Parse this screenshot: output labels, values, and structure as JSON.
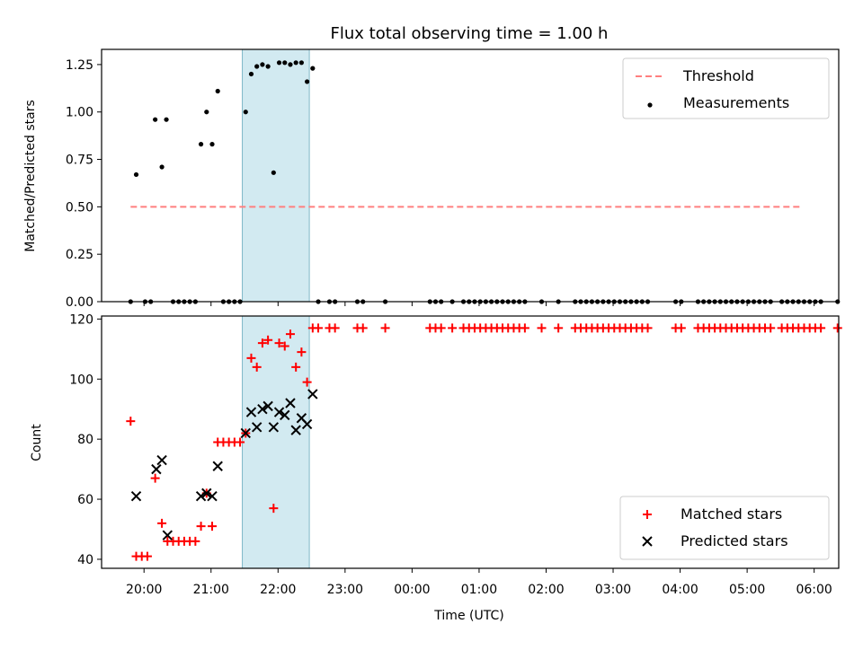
{
  "colors": {
    "threshold": "#ff7f7f",
    "shade": "#add8e6",
    "matched": "#ff0000",
    "predicted": "#000000",
    "measurement": "#000000"
  },
  "x_tick_labels": [
    "20:00",
    "21:00",
    "22:00",
    "23:00",
    "00:00",
    "01:00",
    "02:00",
    "03:00",
    "04:00",
    "05:00",
    "06:00"
  ],
  "chart_data": [
    {
      "type": "scatter",
      "title": "Flux total observing time = 1.00 h",
      "xlabel": "",
      "ylabel": "Matched/Predicted stars",
      "ylim": [
        0,
        1.33
      ],
      "y_ticks": [
        "0.00",
        "0.25",
        "0.50",
        "0.75",
        "1.00",
        "1.25"
      ],
      "xlim": [
        "19:22",
        "06:22"
      ],
      "shaded_interval": [
        "21:28",
        "22:28"
      ],
      "legend": {
        "placement": "top-right",
        "entries": [
          "Threshold",
          "Measurements"
        ]
      },
      "threshold": {
        "name": "Threshold",
        "value": 0.5,
        "x_range": [
          "19:48",
          "05:48"
        ]
      },
      "series": [
        {
          "name": "Measurements",
          "points": [
            [
              "19:48",
              0.0
            ],
            [
              "19:53",
              0.67
            ],
            [
              "20:01",
              0.0
            ],
            [
              "20:06",
              0.0
            ],
            [
              "20:10",
              0.96
            ],
            [
              "20:16",
              0.71
            ],
            [
              "20:20",
              0.96
            ],
            [
              "20:26",
              0.0
            ],
            [
              "20:31",
              0.0
            ],
            [
              "20:36",
              0.0
            ],
            [
              "20:41",
              0.0
            ],
            [
              "20:46",
              0.0
            ],
            [
              "20:51",
              0.83
            ],
            [
              "20:56",
              1.0
            ],
            [
              "21:01",
              0.83
            ],
            [
              "21:06",
              1.11
            ],
            [
              "21:11",
              0.0
            ],
            [
              "21:16",
              0.0
            ],
            [
              "21:21",
              0.0
            ],
            [
              "21:26",
              0.0
            ],
            [
              "21:31",
              1.0
            ],
            [
              "21:36",
              1.2
            ],
            [
              "21:41",
              1.24
            ],
            [
              "21:46",
              1.25
            ],
            [
              "21:51",
              1.24
            ],
            [
              "21:56",
              0.68
            ],
            [
              "22:01",
              1.26
            ],
            [
              "22:06",
              1.26
            ],
            [
              "22:11",
              1.25
            ],
            [
              "22:16",
              1.26
            ],
            [
              "22:21",
              1.26
            ],
            [
              "22:26",
              1.16
            ],
            [
              "22:31",
              1.23
            ],
            [
              "22:36",
              0.0
            ],
            [
              "22:46",
              0.0
            ],
            [
              "22:51",
              0.0
            ],
            [
              "23:11",
              0.0
            ],
            [
              "23:16",
              0.0
            ],
            [
              "23:36",
              0.0
            ],
            [
              "00:16",
              0.0
            ],
            [
              "00:21",
              0.0
            ],
            [
              "00:26",
              0.0
            ],
            [
              "00:36",
              0.0
            ],
            [
              "00:46",
              0.0
            ],
            [
              "00:51",
              0.0
            ],
            [
              "00:56",
              0.0
            ],
            [
              "01:01",
              0.0
            ],
            [
              "01:06",
              0.0
            ],
            [
              "01:11",
              0.0
            ],
            [
              "01:16",
              0.0
            ],
            [
              "01:21",
              0.0
            ],
            [
              "01:26",
              0.0
            ],
            [
              "01:31",
              0.0
            ],
            [
              "01:36",
              0.0
            ],
            [
              "01:41",
              0.0
            ],
            [
              "01:56",
              0.0
            ],
            [
              "02:11",
              0.0
            ],
            [
              "02:26",
              0.0
            ],
            [
              "02:31",
              0.0
            ],
            [
              "02:36",
              0.0
            ],
            [
              "02:41",
              0.0
            ],
            [
              "02:46",
              0.0
            ],
            [
              "02:51",
              0.0
            ],
            [
              "02:56",
              0.0
            ],
            [
              "03:01",
              0.0
            ],
            [
              "03:06",
              0.0
            ],
            [
              "03:11",
              0.0
            ],
            [
              "03:16",
              0.0
            ],
            [
              "03:21",
              0.0
            ],
            [
              "03:26",
              0.0
            ],
            [
              "03:31",
              0.0
            ],
            [
              "03:56",
              0.0
            ],
            [
              "04:01",
              0.0
            ],
            [
              "04:16",
              0.0
            ],
            [
              "04:21",
              0.0
            ],
            [
              "04:26",
              0.0
            ],
            [
              "04:31",
              0.0
            ],
            [
              "04:36",
              0.0
            ],
            [
              "04:41",
              0.0
            ],
            [
              "04:46",
              0.0
            ],
            [
              "04:51",
              0.0
            ],
            [
              "04:56",
              0.0
            ],
            [
              "05:01",
              0.0
            ],
            [
              "05:06",
              0.0
            ],
            [
              "05:11",
              0.0
            ],
            [
              "05:16",
              0.0
            ],
            [
              "05:21",
              0.0
            ],
            [
              "05:31",
              0.0
            ],
            [
              "05:36",
              0.0
            ],
            [
              "05:41",
              0.0
            ],
            [
              "05:46",
              0.0
            ],
            [
              "05:51",
              0.0
            ],
            [
              "05:56",
              0.0
            ],
            [
              "06:01",
              0.0
            ],
            [
              "06:06",
              0.0
            ],
            [
              "06:21",
              0.0
            ]
          ]
        }
      ]
    },
    {
      "type": "scatter",
      "title": "",
      "xlabel": "Time (UTC)",
      "ylabel": "Count",
      "ylim": [
        37,
        121
      ],
      "y_ticks": [
        "40",
        "60",
        "80",
        "100",
        "120"
      ],
      "xlim": [
        "19:22",
        "06:22"
      ],
      "shaded_interval": [
        "21:28",
        "22:28"
      ],
      "legend": {
        "placement": "bottom-right",
        "entries": [
          "Matched stars",
          "Predicted stars"
        ]
      },
      "series": [
        {
          "name": "Matched stars",
          "marker": "+",
          "points": [
            [
              "19:48",
              86
            ],
            [
              "19:53",
              41
            ],
            [
              "19:58",
              41
            ],
            [
              "20:03",
              41
            ],
            [
              "20:10",
              67
            ],
            [
              "20:16",
              52
            ],
            [
              "20:21",
              46
            ],
            [
              "20:26",
              46
            ],
            [
              "20:31",
              46
            ],
            [
              "20:36",
              46
            ],
            [
              "20:41",
              46
            ],
            [
              "20:46",
              46
            ],
            [
              "20:51",
              51
            ],
            [
              "20:56",
              62
            ],
            [
              "21:01",
              51
            ],
            [
              "21:06",
              79
            ],
            [
              "21:11",
              79
            ],
            [
              "21:16",
              79
            ],
            [
              "21:21",
              79
            ],
            [
              "21:26",
              79
            ],
            [
              "21:31",
              82
            ],
            [
              "21:36",
              107
            ],
            [
              "21:41",
              104
            ],
            [
              "21:46",
              112
            ],
            [
              "21:51",
              113
            ],
            [
              "21:56",
              57
            ],
            [
              "22:01",
              112
            ],
            [
              "22:06",
              111
            ],
            [
              "22:11",
              115
            ],
            [
              "22:16",
              104
            ],
            [
              "22:21",
              109
            ],
            [
              "22:26",
              99
            ],
            [
              "22:31",
              117
            ],
            [
              "22:36",
              117
            ],
            [
              "22:46",
              117
            ],
            [
              "22:51",
              117
            ],
            [
              "23:11",
              117
            ],
            [
              "23:16",
              117
            ],
            [
              "23:36",
              117
            ],
            [
              "00:16",
              117
            ],
            [
              "00:21",
              117
            ],
            [
              "00:26",
              117
            ],
            [
              "00:36",
              117
            ],
            [
              "00:46",
              117
            ],
            [
              "00:51",
              117
            ],
            [
              "00:56",
              117
            ],
            [
              "01:01",
              117
            ],
            [
              "01:06",
              117
            ],
            [
              "01:11",
              117
            ],
            [
              "01:16",
              117
            ],
            [
              "01:21",
              117
            ],
            [
              "01:26",
              117
            ],
            [
              "01:31",
              117
            ],
            [
              "01:36",
              117
            ],
            [
              "01:41",
              117
            ],
            [
              "01:56",
              117
            ],
            [
              "02:11",
              117
            ],
            [
              "02:26",
              117
            ],
            [
              "02:31",
              117
            ],
            [
              "02:36",
              117
            ],
            [
              "02:41",
              117
            ],
            [
              "02:46",
              117
            ],
            [
              "02:51",
              117
            ],
            [
              "02:56",
              117
            ],
            [
              "03:01",
              117
            ],
            [
              "03:06",
              117
            ],
            [
              "03:11",
              117
            ],
            [
              "03:16",
              117
            ],
            [
              "03:21",
              117
            ],
            [
              "03:26",
              117
            ],
            [
              "03:31",
              117
            ],
            [
              "03:56",
              117
            ],
            [
              "04:01",
              117
            ],
            [
              "04:16",
              117
            ],
            [
              "04:21",
              117
            ],
            [
              "04:26",
              117
            ],
            [
              "04:31",
              117
            ],
            [
              "04:36",
              117
            ],
            [
              "04:41",
              117
            ],
            [
              "04:46",
              117
            ],
            [
              "04:51",
              117
            ],
            [
              "04:56",
              117
            ],
            [
              "05:01",
              117
            ],
            [
              "05:06",
              117
            ],
            [
              "05:11",
              117
            ],
            [
              "05:16",
              117
            ],
            [
              "05:21",
              117
            ],
            [
              "05:31",
              117
            ],
            [
              "05:36",
              117
            ],
            [
              "05:41",
              117
            ],
            [
              "05:46",
              117
            ],
            [
              "05:51",
              117
            ],
            [
              "05:56",
              117
            ],
            [
              "06:01",
              117
            ],
            [
              "06:06",
              117
            ],
            [
              "06:21",
              117
            ]
          ]
        },
        {
          "name": "Predicted stars",
          "marker": "x",
          "points": [
            [
              "19:53",
              61
            ],
            [
              "20:11",
              70
            ],
            [
              "20:16",
              73
            ],
            [
              "20:21",
              48
            ],
            [
              "20:51",
              61
            ],
            [
              "20:56",
              62
            ],
            [
              "21:01",
              61
            ],
            [
              "21:06",
              71
            ],
            [
              "21:31",
              82
            ],
            [
              "21:36",
              89
            ],
            [
              "21:41",
              84
            ],
            [
              "21:46",
              90
            ],
            [
              "21:51",
              91
            ],
            [
              "21:56",
              84
            ],
            [
              "22:01",
              89
            ],
            [
              "22:06",
              88
            ],
            [
              "22:11",
              92
            ],
            [
              "22:16",
              83
            ],
            [
              "22:21",
              87
            ],
            [
              "22:26",
              85
            ],
            [
              "22:31",
              95
            ]
          ]
        }
      ]
    }
  ]
}
